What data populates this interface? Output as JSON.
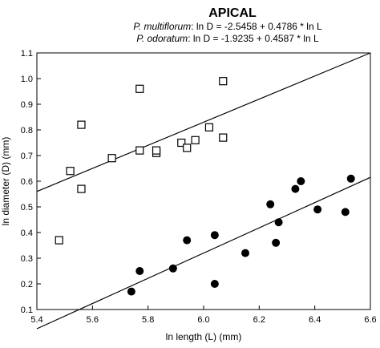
{
  "chart_data": {
    "type": "scatter",
    "title": "APICAL",
    "equations": [
      {
        "species": "P. multiflorum",
        "formula": ": ln D = -2.5458 + 0.4786 * ln L"
      },
      {
        "species": "P. odoratum",
        "formula": ": ln D = -1.9235 + 0.4587 * ln L"
      }
    ],
    "xlabel": "ln length (L) (mm)",
    "ylabel": "ln diameter (D) (mm)",
    "xlim": [
      5.4,
      6.6
    ],
    "ylim": [
      0.1,
      1.1
    ],
    "xticks": [
      "5.4",
      "5.6",
      "5.8",
      "6.0",
      "6.2",
      "6.4",
      "6.6"
    ],
    "yticks": [
      "0.1",
      "0.2",
      "0.3",
      "0.4",
      "0.5",
      "0.6",
      "0.7",
      "0.8",
      "0.9",
      "1.0",
      "1.1"
    ],
    "grid": false,
    "series": [
      {
        "marker": "open-square",
        "x": [
          5.48,
          5.52,
          5.56,
          5.56,
          5.67,
          5.77,
          5.77,
          5.83,
          5.83,
          5.92,
          5.94,
          5.97,
          6.02,
          6.07,
          6.07
        ],
        "y": [
          0.37,
          0.64,
          0.57,
          0.82,
          0.69,
          0.96,
          0.72,
          0.71,
          0.72,
          0.75,
          0.73,
          0.76,
          0.81,
          0.99,
          0.77
        ]
      },
      {
        "marker": "filled-circle",
        "x": [
          5.74,
          5.77,
          5.89,
          5.94,
          6.04,
          6.04,
          6.15,
          6.24,
          6.26,
          6.27,
          6.33,
          6.35,
          6.41,
          6.51,
          6.53
        ],
        "y": [
          0.17,
          0.25,
          0.26,
          0.37,
          0.2,
          0.39,
          0.32,
          0.51,
          0.36,
          0.44,
          0.57,
          0.6,
          0.49,
          0.48,
          0.61
        ]
      }
    ],
    "fit_lines": [
      {
        "for_marker": "open-square",
        "x": [
          5.4,
          6.6
        ],
        "y": [
          0.56,
          1.1
        ]
      },
      {
        "for_marker": "filled-circle",
        "x": [
          5.4,
          6.6
        ],
        "y": [
          0.025,
          0.615
        ]
      }
    ]
  }
}
